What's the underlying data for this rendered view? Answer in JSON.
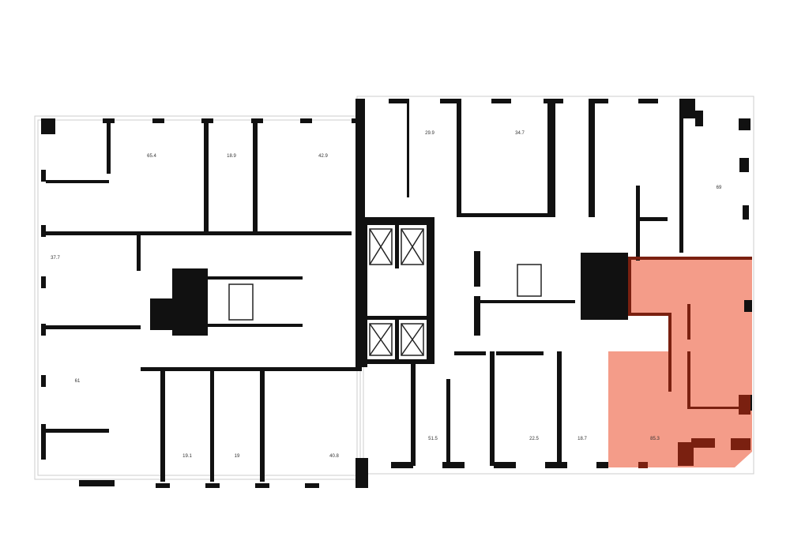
{
  "floor_plan": {
    "highlight_color": "#f28b74",
    "selected_unit": "85.3",
    "units": [
      {
        "id": "u1",
        "area": "65.4"
      },
      {
        "id": "u2",
        "area": "18.9"
      },
      {
        "id": "u3",
        "area": "42.9"
      },
      {
        "id": "u4",
        "area": "29.9"
      },
      {
        "id": "u5",
        "area": "34.7"
      },
      {
        "id": "u6",
        "area": "69"
      },
      {
        "id": "u7",
        "area": "37.7"
      },
      {
        "id": "u8",
        "area": "61"
      },
      {
        "id": "u9",
        "area": "19.1"
      },
      {
        "id": "u10",
        "area": "19"
      },
      {
        "id": "u11",
        "area": "40.8"
      },
      {
        "id": "u12",
        "area": "51.5"
      },
      {
        "id": "u13",
        "area": "22.5"
      },
      {
        "id": "u14",
        "area": "18.7"
      },
      {
        "id": "u15",
        "area": "85.3"
      }
    ]
  }
}
